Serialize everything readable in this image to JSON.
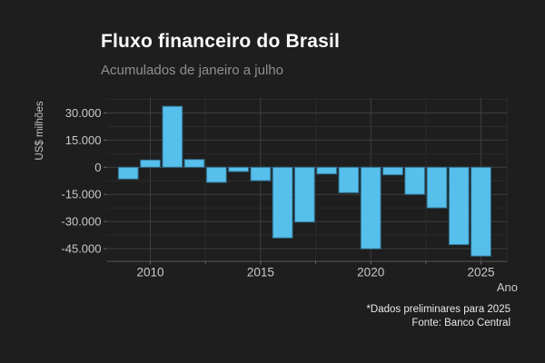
{
  "chart_data": {
    "type": "bar",
    "title": "Fluxo financeiro do Brasil",
    "subtitle": "Acumulados de janeiro a julho",
    "xlabel": "Ano",
    "ylabel": "US$ milhões",
    "caption": [
      "*Dados preliminares para 2025",
      "Fonte: Banco Central"
    ],
    "categories": [
      2009,
      2010,
      2011,
      2012,
      2013,
      2014,
      2015,
      2016,
      2017,
      2018,
      2019,
      2020,
      2021,
      2022,
      2023,
      2024,
      2025
    ],
    "values": [
      -6500,
      4000,
      33700,
      4300,
      -8400,
      -2400,
      -7400,
      -39100,
      -30300,
      -3700,
      -14100,
      -45100,
      -4200,
      -15000,
      -22500,
      -42800,
      -49100
    ],
    "unit": "US$ milhões",
    "ylim": [
      -52000,
      38500
    ],
    "grid": true,
    "legend": false,
    "y_ticks": [
      {
        "value": 30000,
        "label": "30.000"
      },
      {
        "value": 15000,
        "label": "15.000"
      },
      {
        "value": 0,
        "label": "0"
      },
      {
        "value": -15000,
        "label": "-15.000"
      },
      {
        "value": -30000,
        "label": "-30.000"
      },
      {
        "value": -45000,
        "label": "-45.000"
      }
    ],
    "x_ticks": [
      {
        "value": 2010,
        "label": "2010"
      },
      {
        "value": 2015,
        "label": "2015"
      },
      {
        "value": 2020,
        "label": "2020"
      },
      {
        "value": 2025,
        "label": "2025"
      }
    ],
    "colors": {
      "background": "#1e1e1e",
      "bar": "#57bfec",
      "bar_border": "#2f6d89",
      "grid_major": "#3e3e3e",
      "grid_minor": "#2b2b2b",
      "axis_line": "#555555",
      "tick_mark": "#666666",
      "tick_label": "#c9c9c9",
      "title": "#fbfbfb",
      "subtitle": "#8f8f8f",
      "caption": "#e8e8e8"
    }
  }
}
